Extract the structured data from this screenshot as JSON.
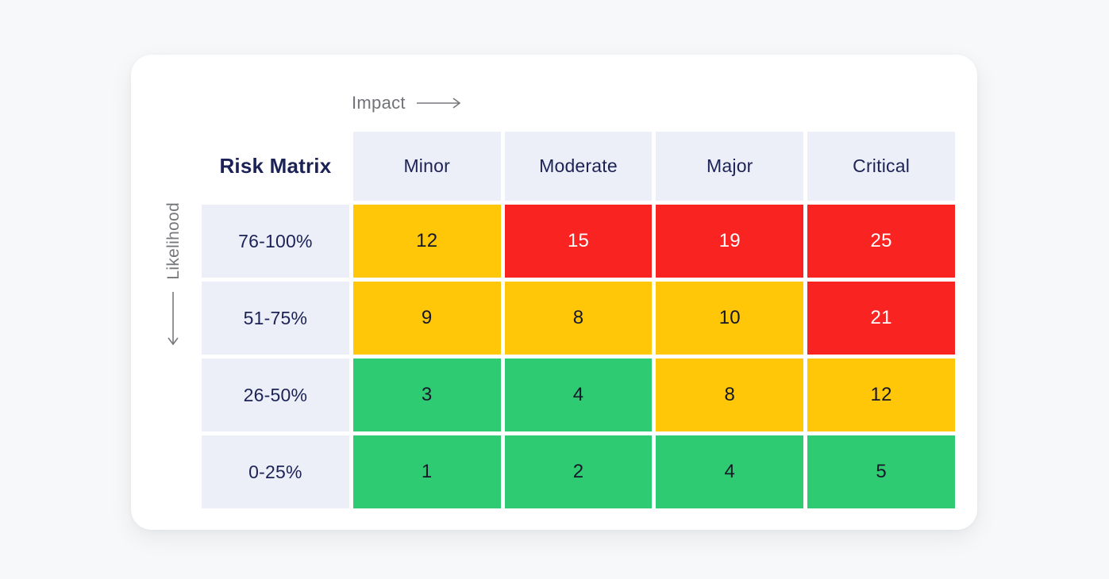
{
  "axes": {
    "impact_label": "Impact",
    "likelihood_label": "Likelihood"
  },
  "chart_data": {
    "type": "heatmap",
    "title": "Risk Matrix",
    "x_axis_label": "Impact",
    "y_axis_label": "Likelihood",
    "columns": [
      "Minor",
      "Moderate",
      "Major",
      "Critical"
    ],
    "rows": [
      "76-100%",
      "51-75%",
      "26-50%",
      "0-25%"
    ],
    "values": [
      [
        12,
        15,
        19,
        25
      ],
      [
        9,
        8,
        10,
        21
      ],
      [
        3,
        4,
        8,
        12
      ],
      [
        1,
        2,
        4,
        5
      ]
    ],
    "cell_levels": [
      [
        "yellow",
        "red",
        "red",
        "red"
      ],
      [
        "yellow",
        "yellow",
        "yellow",
        "red"
      ],
      [
        "green",
        "green",
        "yellow",
        "yellow"
      ],
      [
        "green",
        "green",
        "green",
        "green"
      ]
    ],
    "level_colors": {
      "green": "#2fcb72",
      "yellow": "#ffc707",
      "red": "#f92322"
    },
    "legend_position": "none",
    "grid": "white-gutters"
  },
  "colors": {
    "page_background": "#f7f8f9",
    "card_background": "#ffffff",
    "header_cell_background": "#edeff8",
    "heading_text": "#1b2256",
    "value_text_dark": "#16182a",
    "value_text_on_red": "#ffffff",
    "axis_text": "#75777b"
  }
}
